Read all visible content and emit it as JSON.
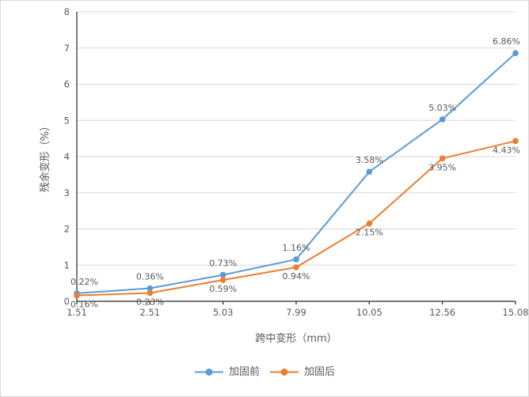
{
  "chart_data": {
    "type": "line",
    "title": "",
    "xlabel": "跨中变形（mm）",
    "ylabel": "残余变形（%）",
    "categories": [
      "1.51",
      "2.51",
      "5.03",
      "7.99",
      "10.05",
      "12.56",
      "15.08"
    ],
    "ylim": [
      0,
      8
    ],
    "y_ticks": [
      0,
      1,
      2,
      3,
      4,
      5,
      6,
      7,
      8
    ],
    "grid": true,
    "legend_position": "bottom",
    "series": [
      {
        "name": "加固前",
        "color": "#5B9BD5",
        "label_position": "above",
        "values": [
          0.22,
          0.36,
          0.73,
          1.16,
          3.58,
          5.03,
          6.86
        ],
        "labels": [
          "0.22%",
          "0.36%",
          "0.73%",
          "1.16%",
          "3.58%",
          "5.03%",
          "6.86%"
        ]
      },
      {
        "name": "加固后",
        "color": "#ED7D31",
        "label_position": "below",
        "values": [
          0.16,
          0.23,
          0.59,
          0.94,
          2.15,
          3.95,
          4.43
        ],
        "labels": [
          "0.16%",
          "0.23%",
          "0.59%",
          "0.94%",
          "2.15%",
          "3.95%",
          "4.43%"
        ]
      }
    ],
    "colors": {
      "gridline": "#D9D9D9",
      "axis": "#262626",
      "tick_text": "#595959",
      "data_label_text": "#595959",
      "border": "#D9D9D9",
      "background": "#FFFFFF"
    }
  }
}
